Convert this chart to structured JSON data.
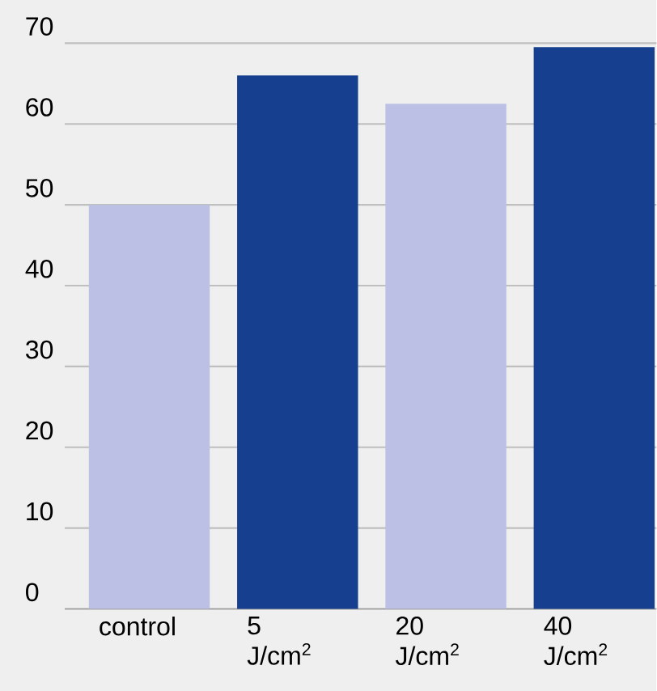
{
  "chart_data": {
    "type": "bar",
    "categories": [
      "control",
      "5 J/cm$^{2}$",
      "20 J/cm$^{2}$",
      "40 J/cm$^{2}$"
    ],
    "values": [
      50,
      66,
      62.5,
      69.5
    ],
    "colors": [
      "#bcc0e4",
      "#16408f",
      "#bcc0e4",
      "#16408f"
    ],
    "ylim": [
      0,
      70
    ],
    "yticks": [
      0,
      10,
      20,
      30,
      40,
      50,
      60,
      70
    ],
    "grid": "y"
  }
}
